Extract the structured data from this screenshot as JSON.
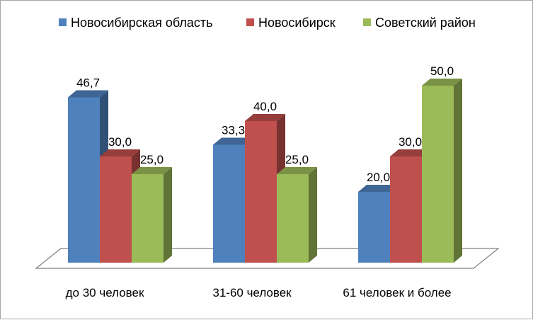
{
  "chart_data": {
    "type": "bar",
    "title": "",
    "xlabel": "",
    "ylabel": "",
    "ylim": [
      0,
      50
    ],
    "grid": false,
    "legend_position": "top",
    "categories": [
      "до 30 человек",
      "31-60 человек",
      "61 человек и более"
    ],
    "series": [
      {
        "name": "Новосибирская область",
        "color": "#4f81bd",
        "values": [
          46.7,
          33.3,
          20.0
        ],
        "labels": [
          "46,7",
          "33,3",
          "20,0"
        ]
      },
      {
        "name": "Новосибирск",
        "color": "#c0504d",
        "values": [
          30.0,
          40.0,
          30.0
        ],
        "labels": [
          "30,0",
          "40,0",
          "30,0"
        ]
      },
      {
        "name": "Советский район",
        "color": "#9bbb59",
        "values": [
          25.0,
          25.0,
          50.0
        ],
        "labels": [
          "25,0",
          "25,0",
          "50,0"
        ]
      }
    ]
  }
}
